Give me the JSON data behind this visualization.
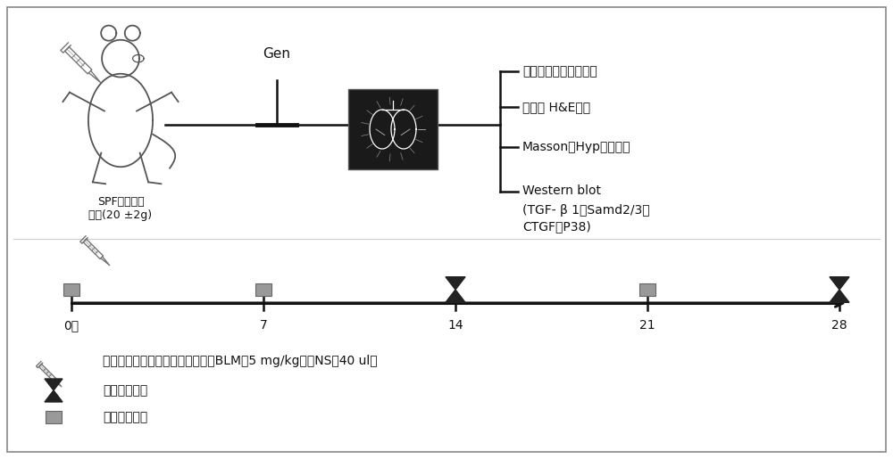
{
  "bg_color": "#ffffff",
  "border_color": "#888888",
  "annotations": {
    "gen_label": "Gen",
    "mouse_label1": "SPF级昆明种",
    "mouse_label2": "小鼠(20 ±2g)",
    "branch_label0": "小鼠生长曲线和肺系数",
    "branch_label1": "肺组织 H&E染色",
    "branch_label2": "Masson、Hyp含量测定",
    "branch_label3_line1": "Western blot",
    "branch_label3_line2": "(TGF- β 1、Samd2/3、",
    "branch_label3_line3": "CTGF、P38)",
    "legend_syringe": "在建模的第一天，小鼠气管内滴注BLM（5 mg/kg）或NS（40 ul）",
    "legend_hourglass": "小鼠处理时间",
    "legend_square": "称量小鼠体重",
    "day0": "0天",
    "day7": "7",
    "day14": "14",
    "day21": "21",
    "day28": "28"
  },
  "colors": {
    "line": "#111111",
    "text": "#111111",
    "hourglass": "#222222",
    "square_fill": "#999999",
    "square_edge": "#666666",
    "lung_bg": "#1a1a1a",
    "lung_fg": "#ffffff",
    "syringe": "#777777"
  }
}
